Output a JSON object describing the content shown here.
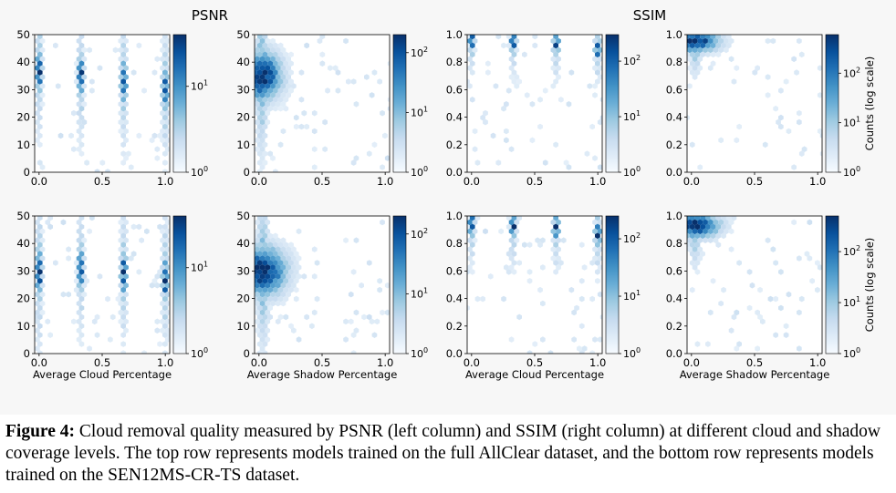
{
  "figure": {
    "psnr_title": "PSNR",
    "ssim_title": "SSIM",
    "colorbar_label": "Counts (log scale)",
    "colorscale": [
      "#f7fbff",
      "#deebf7",
      "#c6dbef",
      "#9ecae1",
      "#6baed6",
      "#4292c6",
      "#2171b5",
      "#08519c",
      "#08306b"
    ]
  },
  "caption": {
    "label": "Figure 4:",
    "text": "Cloud removal quality measured by PSNR (left column) and SSIM (right column) at different cloud and shadow coverage levels. The top row represents models trained on the full AllClear dataset, and the bottom row represents models trained on the SEN12MS-CR-TS dataset."
  },
  "chart_data": [
    {
      "id": "psnr-cloud-allclear",
      "type": "heatmap",
      "subtype": "hexbin",
      "row": "top",
      "metric": "PSNR",
      "xlabel": "",
      "xlim": [
        0,
        1
      ],
      "ylim": [
        0,
        50
      ],
      "xticks": [
        "0.0",
        "0.5",
        "1.0"
      ],
      "yticks": [
        "0",
        "10",
        "20",
        "30",
        "40",
        "50"
      ],
      "colorbar_ticks": [
        "10^0",
        "10^1"
      ],
      "colorbar_max": 40,
      "clusters": [
        {
          "x": 0.0,
          "y": 37,
          "sy": 5
        },
        {
          "x": 0.33,
          "y": 35,
          "sy": 5
        },
        {
          "x": 0.67,
          "y": 33,
          "sy": 5
        },
        {
          "x": 1.0,
          "y": 30,
          "sy": 5
        }
      ]
    },
    {
      "id": "psnr-shadow-allclear",
      "type": "heatmap",
      "subtype": "hexbin",
      "row": "top",
      "metric": "PSNR",
      "xlabel": "",
      "xlim": [
        0,
        1
      ],
      "ylim": [
        0,
        50
      ],
      "xticks": [
        "0.0",
        "0.5",
        "1.0"
      ],
      "yticks": [
        "0",
        "10",
        "20",
        "30",
        "40",
        "50"
      ],
      "colorbar_ticks": [
        "10^0",
        "10^1",
        "10^2"
      ],
      "colorbar_max": 200,
      "clusters": [
        {
          "x": 0.02,
          "y": 35,
          "sy": 6,
          "sx": 0.1
        }
      ]
    },
    {
      "id": "ssim-cloud-allclear",
      "type": "heatmap",
      "subtype": "hexbin",
      "row": "top",
      "metric": "SSIM",
      "xlabel": "",
      "xlim": [
        0,
        1
      ],
      "ylim": [
        0,
        1
      ],
      "xticks": [
        "0.0",
        "0.5",
        "1.0"
      ],
      "yticks": [
        "0.0",
        "0.2",
        "0.4",
        "0.6",
        "0.8",
        "1.0"
      ],
      "colorbar_ticks": [
        "10^0",
        "10^1",
        "10^2"
      ],
      "colorbar_max": 300,
      "clusters": [
        {
          "x": 0.0,
          "y": 0.96,
          "sy": 0.05
        },
        {
          "x": 0.33,
          "y": 0.95,
          "sy": 0.05
        },
        {
          "x": 0.67,
          "y": 0.93,
          "sy": 0.05
        },
        {
          "x": 1.0,
          "y": 0.9,
          "sy": 0.05
        }
      ]
    },
    {
      "id": "ssim-shadow-allclear",
      "type": "heatmap",
      "subtype": "hexbin",
      "row": "top",
      "metric": "SSIM",
      "xlabel": "",
      "xlim": [
        0,
        1
      ],
      "ylim": [
        0,
        1
      ],
      "xticks": [
        "0.0",
        "0.5",
        "1.0"
      ],
      "yticks": [
        "0.0",
        "0.2",
        "0.4",
        "0.6",
        "0.8",
        "1.0"
      ],
      "colorbar_ticks": [
        "10^0",
        "10^1",
        "10^2"
      ],
      "colorbar_max": 600,
      "clusters": [
        {
          "x": 0.03,
          "y": 0.95,
          "sy": 0.05,
          "sx": 0.12
        }
      ]
    },
    {
      "id": "psnr-cloud-sen12",
      "type": "heatmap",
      "subtype": "hexbin",
      "row": "bottom",
      "metric": "PSNR",
      "xlabel": "Average Cloud Percentage",
      "xlim": [
        0,
        1
      ],
      "ylim": [
        0,
        50
      ],
      "xticks": [
        "0.0",
        "0.5",
        "1.0"
      ],
      "yticks": [
        "0",
        "10",
        "20",
        "30",
        "40",
        "50"
      ],
      "colorbar_ticks": [
        "10^0",
        "10^1"
      ],
      "colorbar_max": 40,
      "clusters": [
        {
          "x": 0.0,
          "y": 30,
          "sy": 6
        },
        {
          "x": 0.33,
          "y": 31,
          "sy": 5
        },
        {
          "x": 0.67,
          "y": 29,
          "sy": 5
        },
        {
          "x": 1.0,
          "y": 27,
          "sy": 5
        }
      ]
    },
    {
      "id": "psnr-shadow-sen12",
      "type": "heatmap",
      "subtype": "hexbin",
      "row": "bottom",
      "metric": "PSNR",
      "xlabel": "Average Shadow Percentage",
      "xlim": [
        0,
        1
      ],
      "ylim": [
        0,
        50
      ],
      "xticks": [
        "0.0",
        "0.5",
        "1.0"
      ],
      "yticks": [
        "0",
        "10",
        "20",
        "30",
        "40",
        "50"
      ],
      "colorbar_ticks": [
        "10^0",
        "10^1",
        "10^2"
      ],
      "colorbar_max": 200,
      "clusters": [
        {
          "x": 0.03,
          "y": 30,
          "sy": 6,
          "sx": 0.12
        }
      ]
    },
    {
      "id": "ssim-cloud-sen12",
      "type": "heatmap",
      "subtype": "hexbin",
      "row": "bottom",
      "metric": "SSIM",
      "xlabel": "Average Cloud Percentage",
      "xlim": [
        0,
        1
      ],
      "ylim": [
        0,
        1
      ],
      "xticks": [
        "0.0",
        "0.5",
        "1.0"
      ],
      "yticks": [
        "0.0",
        "0.2",
        "0.4",
        "0.6",
        "0.8",
        "1.0"
      ],
      "colorbar_ticks": [
        "10^0",
        "10^1",
        "10^2"
      ],
      "colorbar_max": 250,
      "clusters": [
        {
          "x": 0.0,
          "y": 0.94,
          "sy": 0.06
        },
        {
          "x": 0.33,
          "y": 0.93,
          "sy": 0.06
        },
        {
          "x": 0.67,
          "y": 0.91,
          "sy": 0.06
        },
        {
          "x": 1.0,
          "y": 0.87,
          "sy": 0.06
        }
      ]
    },
    {
      "id": "ssim-shadow-sen12",
      "type": "heatmap",
      "subtype": "hexbin",
      "row": "bottom",
      "metric": "SSIM",
      "xlabel": "Average Shadow Percentage",
      "xlim": [
        0,
        1
      ],
      "ylim": [
        0,
        1
      ],
      "xticks": [
        "0.0",
        "0.5",
        "1.0"
      ],
      "yticks": [
        "0.0",
        "0.2",
        "0.4",
        "0.6",
        "0.8",
        "1.0"
      ],
      "colorbar_ticks": [
        "10^0",
        "10^1",
        "10^2"
      ],
      "colorbar_max": 500,
      "clusters": [
        {
          "x": 0.03,
          "y": 0.93,
          "sy": 0.06,
          "sx": 0.12
        }
      ]
    }
  ]
}
